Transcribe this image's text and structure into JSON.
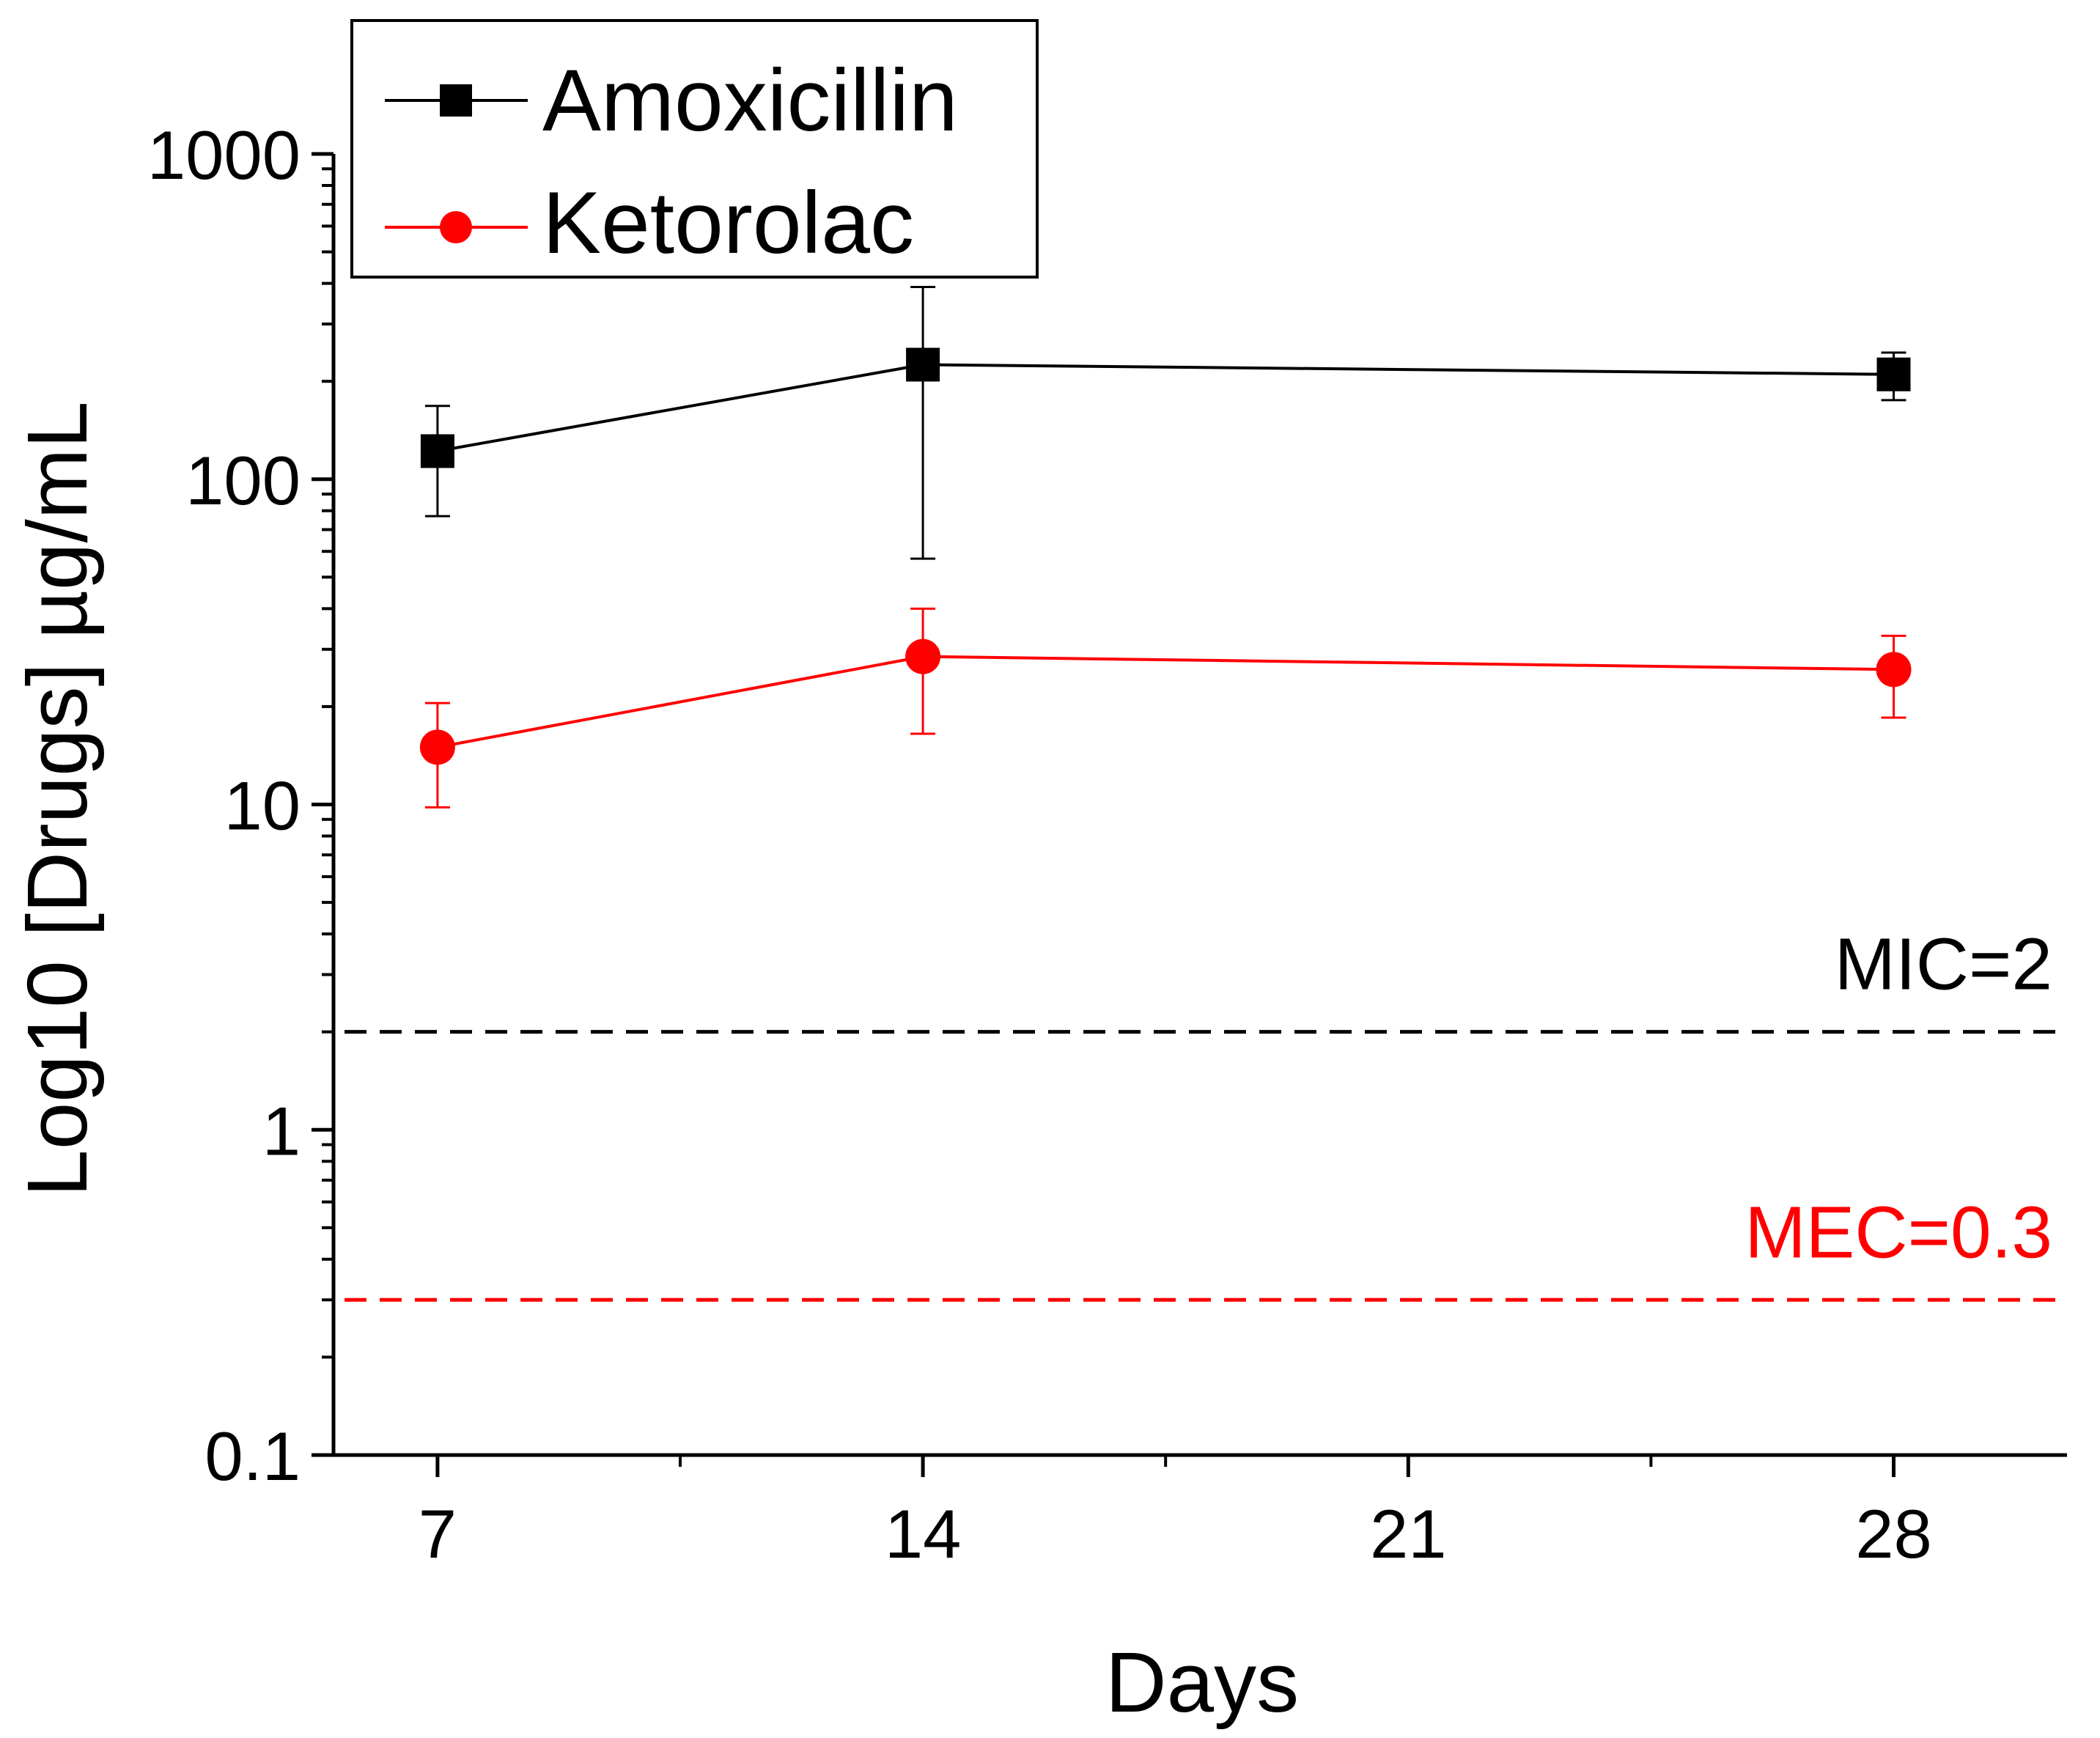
{
  "chart_data": {
    "type": "line",
    "title": "",
    "xlabel": "Days",
    "ylabel": "Log10 [Drugs] µg/mL",
    "yscale": "log",
    "xlim": [
      5.5,
      30.5
    ],
    "ylim": [
      0.1,
      1000
    ],
    "x_ticks": [
      7,
      14,
      21,
      28
    ],
    "x_tick_labels": [
      "7",
      "14",
      "21",
      "28"
    ],
    "y_ticks": [
      0.1,
      1,
      10,
      100,
      1000
    ],
    "y_tick_labels": [
      "0.1",
      "1",
      "10",
      "100",
      "1000"
    ],
    "grid": false,
    "legend_position": "top-left",
    "series": [
      {
        "name": "Amoxicillin",
        "color": "#000000",
        "marker": "square",
        "x": [
          7,
          14,
          28
        ],
        "values": [
          122,
          225,
          210
        ],
        "error_low": [
          77,
          57,
          175
        ],
        "error_high": [
          168,
          390,
          245
        ]
      },
      {
        "name": "Ketorolac",
        "color": "#ff0000",
        "marker": "circle",
        "x": [
          7,
          14,
          28
        ],
        "values": [
          15,
          28.5,
          26
        ],
        "error_low": [
          9.8,
          16.5,
          18.5
        ],
        "error_high": [
          20.5,
          40,
          33
        ]
      }
    ],
    "reference_lines": [
      {
        "label": "MIC=2",
        "value": 2,
        "color": "#000000",
        "style": "dashed"
      },
      {
        "label": "MEC=0.3",
        "value": 0.3,
        "color": "#ff0000",
        "style": "dashed"
      }
    ]
  }
}
